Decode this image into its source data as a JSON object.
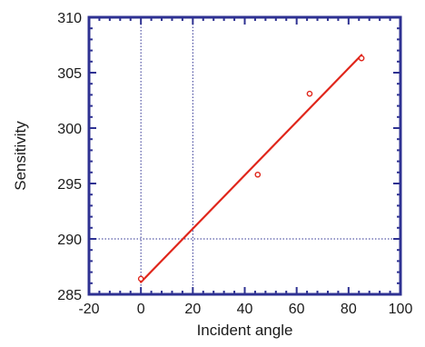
{
  "chart_data": {
    "type": "scatter",
    "title": "",
    "xlabel": "Incident angle",
    "ylabel": "Sensitivity",
    "xlim": [
      -20,
      100
    ],
    "ylim": [
      285,
      310
    ],
    "x_ticks": [
      -20,
      0,
      20,
      40,
      60,
      80,
      100
    ],
    "y_ticks": [
      285,
      290,
      295,
      300,
      305,
      310
    ],
    "x_tick_labels": [
      "-20",
      "0",
      "20",
      "40",
      "60",
      "80",
      "100"
    ],
    "y_tick_labels": [
      "285",
      "290",
      "295",
      "300",
      "305",
      "310"
    ],
    "grid": false,
    "reference_lines": {
      "vertical": [
        0,
        20
      ],
      "horizontal": [
        290
      ]
    },
    "series": [
      {
        "kind": "points",
        "marker": "open-circle",
        "color": "#e0261b",
        "x": [
          0,
          45,
          65,
          85
        ],
        "y": [
          286.4,
          295.8,
          303.1,
          306.3
        ]
      },
      {
        "kind": "fit-line",
        "color": "#e0261b",
        "x": [
          0,
          85
        ],
        "y": [
          286.1,
          306.6
        ]
      }
    ],
    "colors": {
      "axis": "#2e3192",
      "reference": "#2e3192",
      "data": "#e0261b"
    }
  }
}
